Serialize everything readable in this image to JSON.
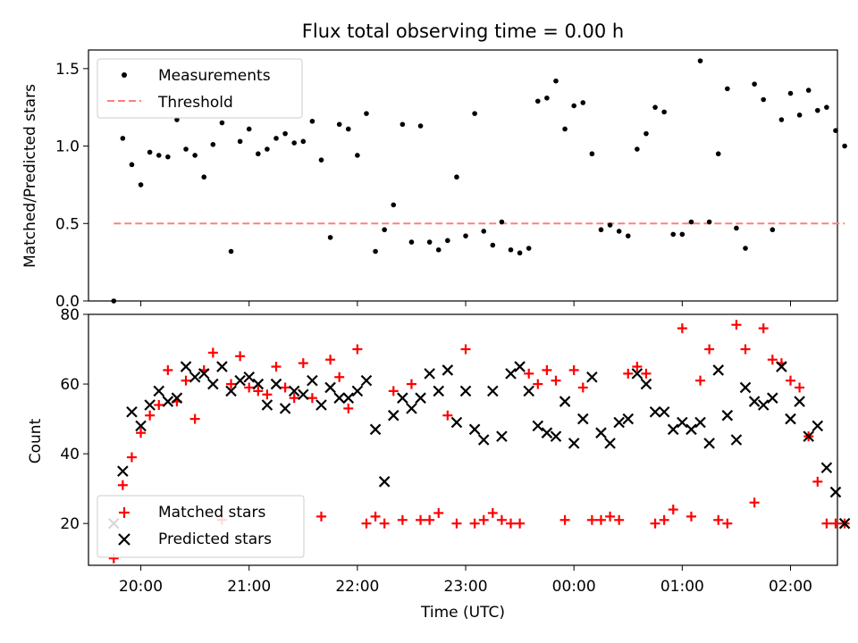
{
  "figure": {
    "title": "Flux total observing time = 0.00 h"
  },
  "chart_data": [
    {
      "type": "scatter",
      "ylabel": "Matched/Predicted stars",
      "xlabel": "",
      "ylim": [
        0,
        1.62
      ],
      "yticks": [
        "0.0",
        "0.5",
        "1.0",
        "1.5"
      ],
      "legend": {
        "placement": "top-left",
        "entries": [
          "Measurements",
          "Threshold"
        ]
      },
      "series": [
        {
          "name": "Measurements",
          "marker": "dot",
          "color": "#000000",
          "x": [
            "19:45",
            "19:50",
            "19:55",
            "20:00",
            "20:05",
            "20:10",
            "20:15",
            "20:20",
            "20:25",
            "20:30",
            "20:35",
            "20:40",
            "20:45",
            "20:50",
            "20:55",
            "21:00",
            "21:05",
            "21:10",
            "21:15",
            "21:20",
            "21:25",
            "21:30",
            "21:35",
            "21:40",
            "21:45",
            "21:50",
            "21:55",
            "22:00",
            "22:05",
            "22:10",
            "22:15",
            "22:20",
            "22:25",
            "22:30",
            "22:35",
            "22:40",
            "22:45",
            "22:50",
            "22:55",
            "23:00",
            "23:05",
            "23:10",
            "23:15",
            "23:20",
            "23:25",
            "23:30",
            "23:35",
            "23:40",
            "23:45",
            "23:50",
            "23:55",
            "00:00",
            "00:05",
            "00:10",
            "00:15",
            "00:20",
            "00:25",
            "00:30",
            "00:35",
            "00:40",
            "00:45",
            "00:50",
            "00:55",
            "01:00",
            "01:05",
            "01:10",
            "01:15",
            "01:20",
            "01:25",
            "01:30",
            "01:35",
            "01:40",
            "01:45",
            "01:50",
            "01:55",
            "02:00",
            "02:05",
            "02:10",
            "02:15",
            "02:20",
            "02:25",
            "02:30"
          ],
          "y": [
            0.0,
            1.05,
            0.88,
            0.75,
            0.96,
            0.94,
            0.93,
            1.17,
            0.98,
            0.94,
            0.8,
            1.01,
            1.15,
            0.32,
            1.03,
            1.11,
            0.95,
            0.98,
            1.05,
            1.08,
            1.02,
            1.03,
            1.16,
            0.91,
            0.41,
            1.14,
            1.11,
            0.94,
            1.21,
            0.32,
            0.46,
            0.62,
            1.14,
            0.38,
            1.13,
            0.38,
            0.33,
            0.39,
            0.8,
            0.42,
            1.21,
            0.45,
            0.36,
            0.51,
            0.33,
            0.31,
            0.34,
            1.29,
            1.31,
            1.42,
            1.11,
            1.26,
            1.28,
            0.95,
            0.46,
            0.49,
            0.45,
            0.42,
            0.98,
            1.08,
            1.25,
            1.22,
            0.43,
            0.43,
            0.51,
            1.55,
            0.51,
            0.95,
            1.37,
            0.47,
            0.34,
            1.4,
            1.3,
            0.46,
            1.17,
            1.34,
            1.2,
            1.36,
            1.23,
            1.25,
            1.1,
            1.0
          ]
        },
        {
          "name": "Threshold",
          "style": "dashed",
          "color": "#ff7f7f",
          "x": [
            "19:45",
            "02:30"
          ],
          "y": [
            0.5,
            0.5
          ]
        }
      ]
    },
    {
      "type": "scatter",
      "xlabel": "Time (UTC)",
      "ylabel": "Count",
      "ylim": [
        8,
        80
      ],
      "yticks": [
        "20",
        "40",
        "60",
        "80"
      ],
      "xticks": [
        "20:00",
        "21:00",
        "22:00",
        "23:00",
        "00:00",
        "01:00",
        "02:00"
      ],
      "legend": {
        "placement": "bottom-left",
        "entries": [
          "Matched stars",
          "Predicted stars"
        ]
      },
      "series": [
        {
          "name": "Matched stars",
          "marker": "plus",
          "color": "#ff0000",
          "x": [
            "19:45",
            "19:50",
            "19:55",
            "20:00",
            "20:05",
            "20:10",
            "20:15",
            "20:20",
            "20:25",
            "20:30",
            "20:35",
            "20:40",
            "20:45",
            "20:50",
            "20:55",
            "21:00",
            "21:05",
            "21:10",
            "21:15",
            "21:20",
            "21:25",
            "21:30",
            "21:35",
            "21:40",
            "21:45",
            "21:50",
            "21:55",
            "22:00",
            "22:05",
            "22:10",
            "22:15",
            "22:20",
            "22:25",
            "22:30",
            "22:35",
            "22:40",
            "22:45",
            "22:50",
            "22:55",
            "23:00",
            "23:05",
            "23:10",
            "23:15",
            "23:20",
            "23:25",
            "23:30",
            "23:35",
            "23:40",
            "23:45",
            "23:50",
            "23:55",
            "00:00",
            "00:05",
            "00:10",
            "00:15",
            "00:20",
            "00:25",
            "00:30",
            "00:35",
            "00:40",
            "00:45",
            "00:50",
            "00:55",
            "01:00",
            "01:05",
            "01:10",
            "01:15",
            "01:20",
            "01:25",
            "01:30",
            "01:35",
            "01:40",
            "01:45",
            "01:50",
            "01:55",
            "02:00",
            "02:05",
            "02:10",
            "02:15",
            "02:20",
            "02:25",
            "02:30"
          ],
          "y": [
            10,
            31,
            39,
            46,
            51,
            54,
            64,
            55,
            61,
            50,
            64,
            69,
            21,
            60,
            68,
            59,
            58,
            57,
            65,
            59,
            56,
            66,
            56,
            22,
            67,
            62,
            53,
            70,
            20,
            22,
            20,
            58,
            21,
            60,
            21,
            21,
            23,
            51,
            20,
            70,
            20,
            21,
            23,
            21,
            20,
            20,
            63,
            60,
            64,
            61,
            21,
            64,
            59,
            21,
            21,
            22,
            21,
            63,
            65,
            63,
            20,
            21,
            24,
            76,
            22,
            61,
            70,
            21,
            20,
            77,
            70,
            26,
            76,
            67,
            66,
            61,
            59,
            45,
            32,
            20,
            20,
            20
          ]
        },
        {
          "name": "Predicted stars",
          "marker": "x",
          "color": "#000000",
          "x": [
            "19:45",
            "19:50",
            "19:55",
            "20:00",
            "20:05",
            "20:10",
            "20:15",
            "20:20",
            "20:25",
            "20:30",
            "20:35",
            "20:40",
            "20:45",
            "20:50",
            "20:55",
            "21:00",
            "21:05",
            "21:10",
            "21:15",
            "21:20",
            "21:25",
            "21:30",
            "21:35",
            "21:40",
            "21:45",
            "21:50",
            "21:55",
            "22:00",
            "22:05",
            "22:10",
            "22:15",
            "22:20",
            "22:25",
            "22:30",
            "22:35",
            "22:40",
            "22:45",
            "22:50",
            "22:55",
            "23:00",
            "23:05",
            "23:10",
            "23:15",
            "23:20",
            "23:25",
            "23:30",
            "23:35",
            "23:40",
            "23:45",
            "23:50",
            "23:55",
            "00:00",
            "00:05",
            "00:10",
            "00:15",
            "00:20",
            "00:25",
            "00:30",
            "00:35",
            "00:40",
            "00:45",
            "00:50",
            "00:55",
            "01:00",
            "01:05",
            "01:10",
            "01:15",
            "01:20",
            "01:25",
            "01:30",
            "01:35",
            "01:40",
            "01:45",
            "01:50",
            "01:55",
            "02:00",
            "02:05",
            "02:10",
            "02:15",
            "02:20",
            "02:25",
            "02:30"
          ],
          "y": [
            20,
            35,
            52,
            48,
            54,
            58,
            55,
            56,
            65,
            62,
            63,
            60,
            65,
            58,
            61,
            62,
            60,
            54,
            60,
            53,
            58,
            57,
            61,
            54,
            59,
            56,
            56,
            58,
            61,
            47,
            32,
            51,
            56,
            53,
            56,
            63,
            58,
            64,
            49,
            58,
            47,
            44,
            58,
            45,
            63,
            65,
            58,
            48,
            46,
            45,
            55,
            43,
            50,
            62,
            46,
            43,
            49,
            50,
            63,
            60,
            52,
            52,
            47,
            49,
            47,
            49,
            43,
            64,
            51,
            44,
            59,
            55,
            54,
            56,
            65,
            50,
            55,
            45,
            48,
            36,
            29,
            20
          ]
        }
      ]
    }
  ]
}
